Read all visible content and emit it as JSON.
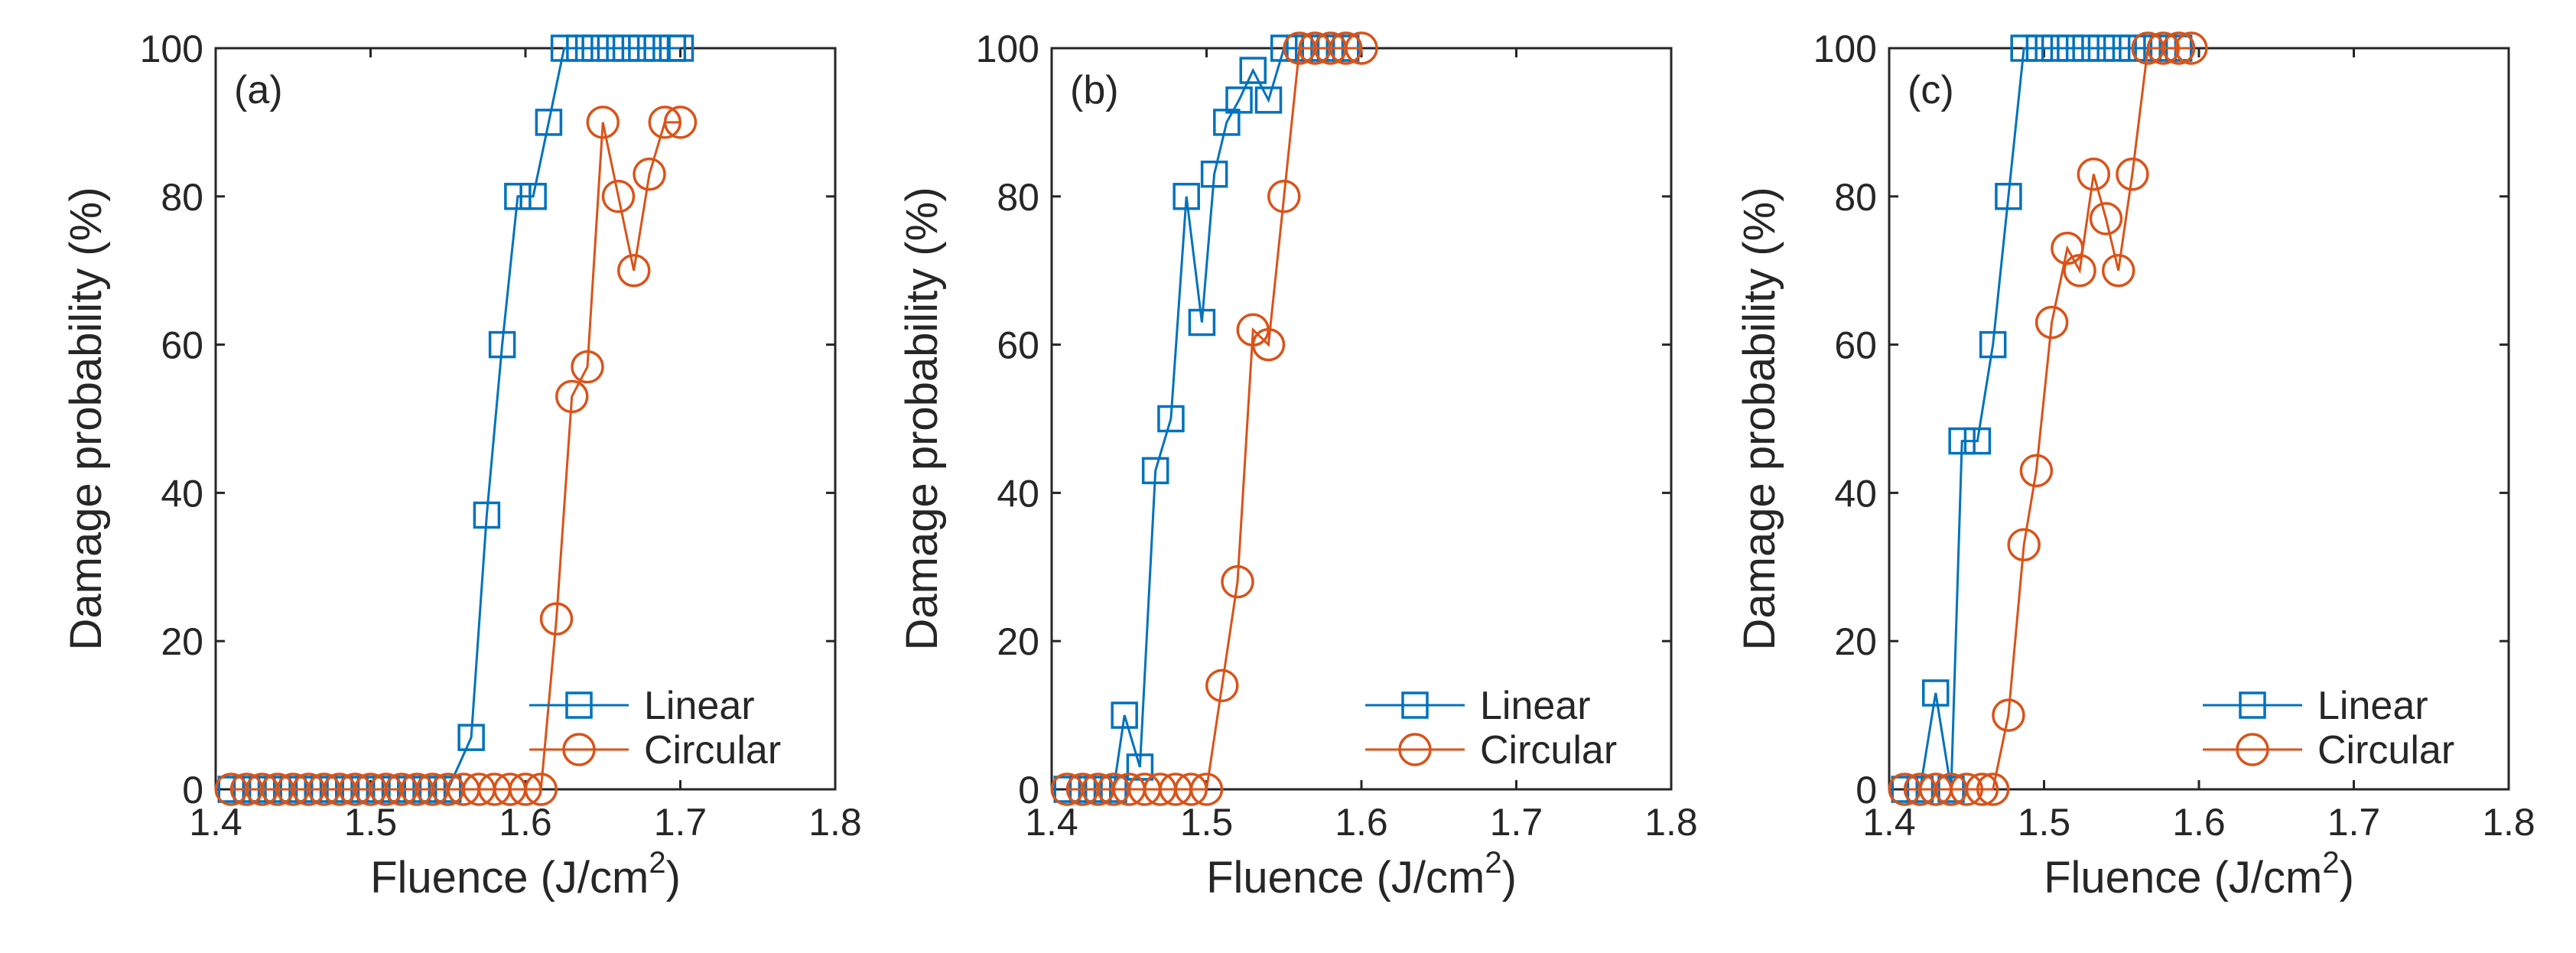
{
  "figure": {
    "colors": {
      "linear": "#0072BD",
      "circular": "#D95319",
      "axis": "#262626"
    }
  },
  "chart_data": [
    {
      "type": "line",
      "panel_label": "(a)",
      "xlabel": "Fluence (J/cm",
      "xlabel_sup": "2",
      "xlabel_close": ")",
      "ylabel": "Damage probability (%)",
      "xlim": [
        1.4,
        1.8
      ],
      "ylim": [
        0,
        100
      ],
      "xticks": [
        "1.4",
        "1.5",
        "1.6",
        "1.7",
        "1.8"
      ],
      "yticks": [
        "0",
        "20",
        "40",
        "60",
        "80",
        "100"
      ],
      "legend": {
        "position": "bottom-right",
        "entries": [
          "Linear",
          "Circular"
        ]
      },
      "series": [
        {
          "name": "Linear",
          "marker": "square",
          "x": [
            1.41,
            1.42,
            1.43,
            1.44,
            1.45,
            1.46,
            1.47,
            1.48,
            1.49,
            1.5,
            1.51,
            1.52,
            1.53,
            1.54,
            1.55,
            1.565,
            1.575,
            1.585,
            1.595,
            1.605,
            1.615,
            1.625,
            1.635,
            1.645,
            1.655,
            1.665,
            1.675,
            1.685,
            1.695,
            1.7
          ],
          "y": [
            0,
            0,
            0,
            0,
            0,
            0,
            0,
            0,
            0,
            0,
            0,
            0,
            0,
            0,
            0,
            7,
            37,
            60,
            80,
            80,
            90,
            100,
            100,
            100,
            100,
            100,
            100,
            100,
            100,
            100
          ]
        },
        {
          "name": "Circular",
          "marker": "circle",
          "x": [
            1.41,
            1.42,
            1.43,
            1.44,
            1.45,
            1.46,
            1.47,
            1.48,
            1.49,
            1.5,
            1.51,
            1.52,
            1.53,
            1.54,
            1.55,
            1.56,
            1.57,
            1.58,
            1.59,
            1.6,
            1.61,
            1.62,
            1.63,
            1.64,
            1.65,
            1.66,
            1.67,
            1.68,
            1.69,
            1.7
          ],
          "y": [
            0,
            0,
            0,
            0,
            0,
            0,
            0,
            0,
            0,
            0,
            0,
            0,
            0,
            0,
            0,
            0,
            0,
            0,
            0,
            0,
            0,
            23,
            53,
            57,
            90,
            80,
            70,
            83,
            90,
            90
          ]
        }
      ]
    },
    {
      "type": "line",
      "panel_label": "(b)",
      "xlabel": "Fluence (J/cm",
      "xlabel_sup": "2",
      "xlabel_close": ")",
      "ylabel": "Damage probability (%)",
      "xlim": [
        1.4,
        1.8
      ],
      "ylim": [
        0,
        100
      ],
      "xticks": [
        "1.4",
        "1.5",
        "1.6",
        "1.7",
        "1.8"
      ],
      "yticks": [
        "0",
        "20",
        "40",
        "60",
        "80",
        "100"
      ],
      "legend": {
        "position": "bottom-right",
        "entries": [
          "Linear",
          "Circular"
        ]
      },
      "series": [
        {
          "name": "Linear",
          "marker": "square",
          "x": [
            1.41,
            1.42,
            1.43,
            1.44,
            1.447,
            1.457,
            1.467,
            1.477,
            1.487,
            1.497,
            1.505,
            1.513,
            1.521,
            1.53,
            1.54,
            1.55,
            1.56,
            1.57,
            1.58,
            1.59
          ],
          "y": [
            0,
            0,
            0,
            0,
            10,
            3,
            43,
            50,
            80,
            63,
            83,
            90,
            93,
            97,
            93,
            100,
            100,
            100,
            100,
            100
          ]
        },
        {
          "name": "Circular",
          "marker": "circle",
          "x": [
            1.41,
            1.42,
            1.43,
            1.44,
            1.45,
            1.46,
            1.47,
            1.48,
            1.49,
            1.5,
            1.51,
            1.52,
            1.53,
            1.54,
            1.55,
            1.56,
            1.57,
            1.58,
            1.59,
            1.6
          ],
          "y": [
            0,
            0,
            0,
            0,
            0,
            0,
            0,
            0,
            0,
            0,
            14,
            28,
            62,
            60,
            80,
            100,
            100,
            100,
            100,
            100
          ]
        }
      ]
    },
    {
      "type": "line",
      "panel_label": "(c)",
      "xlabel": "Fluence (J/cm",
      "xlabel_sup": "2",
      "xlabel_close": ")",
      "ylabel": "Damage probability (%)",
      "xlim": [
        1.4,
        1.8
      ],
      "ylim": [
        0,
        100
      ],
      "xticks": [
        "1.4",
        "1.5",
        "1.6",
        "1.7",
        "1.8"
      ],
      "yticks": [
        "0",
        "20",
        "40",
        "60",
        "80",
        "100"
      ],
      "legend": {
        "position": "bottom-right",
        "entries": [
          "Linear",
          "Circular"
        ]
      },
      "series": [
        {
          "name": "Linear",
          "marker": "square",
          "x": [
            1.41,
            1.42,
            1.43,
            1.44,
            1.447,
            1.457,
            1.467,
            1.477,
            1.487,
            1.497,
            1.507,
            1.517,
            1.527,
            1.537,
            1.547,
            1.557,
            1.567,
            1.577,
            1.587
          ],
          "y": [
            0,
            0,
            13,
            0,
            47,
            47,
            60,
            80,
            100,
            100,
            100,
            100,
            100,
            100,
            100,
            100,
            100,
            100,
            100
          ]
        },
        {
          "name": "Circular",
          "marker": "circle",
          "x": [
            1.41,
            1.42,
            1.43,
            1.44,
            1.45,
            1.46,
            1.467,
            1.477,
            1.487,
            1.495,
            1.505,
            1.515,
            1.523,
            1.532,
            1.54,
            1.548,
            1.557,
            1.567,
            1.577,
            1.587,
            1.595
          ],
          "y": [
            0,
            0,
            0,
            0,
            0,
            0,
            0,
            10,
            33,
            43,
            63,
            73,
            70,
            83,
            77,
            70,
            83,
            100,
            100,
            100,
            100
          ]
        }
      ]
    }
  ]
}
